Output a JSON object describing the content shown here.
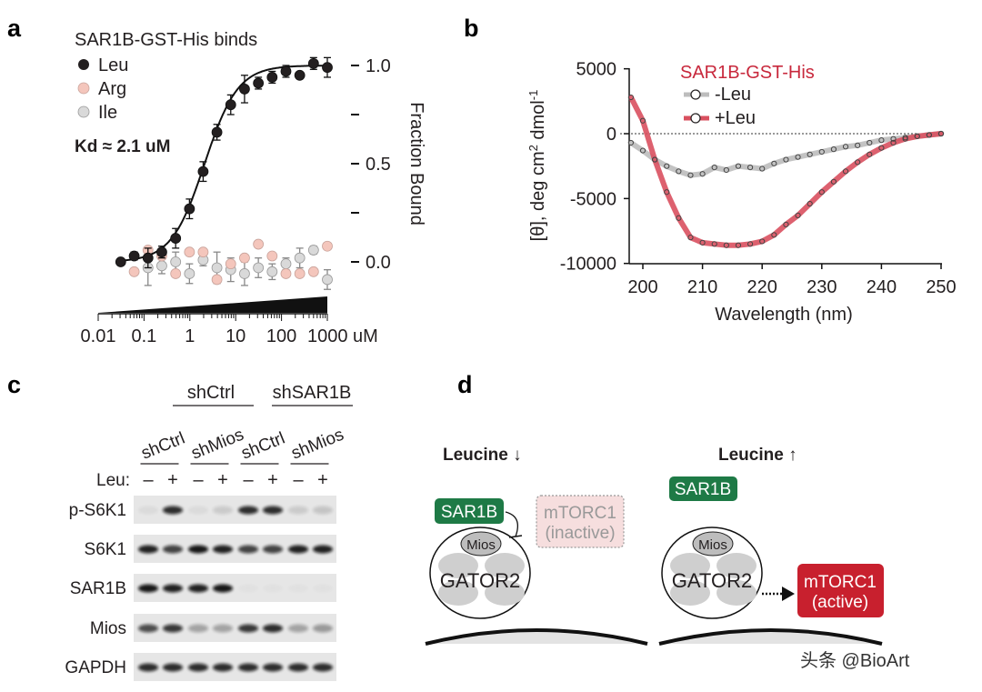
{
  "panels": {
    "a": {
      "letter": "a"
    },
    "b": {
      "letter": "b"
    },
    "c": {
      "letter": "c"
    },
    "d": {
      "letter": "d"
    }
  },
  "chart_data": [
    {
      "panel": "a",
      "type": "scatter",
      "title": "SAR1B-GST-His binds",
      "annotation": "Kd ≈ 2.1 uM",
      "kd": 2.1,
      "xlabel": "uM",
      "ylabel": "Fraction Bound",
      "xscale": "log",
      "xlim": [
        0.01,
        1000
      ],
      "ylim": [
        -0.15,
        1.05
      ],
      "x_tick_labels": [
        "0.01",
        "0.1",
        "1",
        "10",
        "100",
        "1000 uM"
      ],
      "x_ticks": [
        0.01,
        0.1,
        1,
        10,
        100,
        1000
      ],
      "y_tick_labels": [
        "1.0",
        "0.5",
        "0.0"
      ],
      "y_ticks": [
        1.0,
        0.5,
        0.0
      ],
      "y_minor_ticks": [
        0.75,
        0.25
      ],
      "y_axis_side": "right",
      "legend_position": "top-left",
      "x": [
        0.031,
        0.061,
        0.122,
        0.244,
        0.49,
        0.98,
        1.95,
        3.9,
        7.8,
        15.6,
        31.25,
        62.5,
        125,
        250,
        500,
        1000
      ],
      "series": [
        {
          "name": "Leu",
          "color": "#231f20",
          "fit": "sigmoid",
          "values": [
            0.0,
            0.03,
            0.02,
            0.05,
            0.12,
            0.27,
            0.46,
            0.66,
            0.8,
            0.88,
            0.91,
            0.94,
            0.97,
            0.95,
            1.01,
            0.99
          ],
          "err": [
            0.0,
            0.02,
            0.05,
            0.03,
            0.05,
            0.05,
            0.05,
            0.04,
            0.05,
            0.07,
            0.03,
            0.03,
            0.03,
            0.0,
            0.03,
            0.05
          ]
        },
        {
          "name": "Arg",
          "color": "#f4c6bc",
          "values": [
            null,
            -0.05,
            0.06,
            0.03,
            -0.06,
            0.05,
            0.05,
            -0.09,
            -0.01,
            0.02,
            0.09,
            0.03,
            -0.06,
            -0.06,
            -0.05,
            0.08
          ],
          "err": [
            null,
            0.0,
            0.0,
            0.0,
            0.0,
            0.0,
            0.0,
            0.0,
            0.0,
            0.0,
            0.0,
            0.0,
            0.0,
            0.0,
            0.0,
            0.0
          ]
        },
        {
          "name": "Ile",
          "color": "#d9d9d9",
          "values": [
            null,
            null,
            -0.03,
            -0.02,
            0.0,
            -0.06,
            0.01,
            -0.03,
            -0.04,
            -0.06,
            -0.03,
            -0.05,
            -0.01,
            0.02,
            0.06,
            -0.09
          ],
          "err": [
            null,
            null,
            0.09,
            0.04,
            0.05,
            0.05,
            0.03,
            0.08,
            0.06,
            0.06,
            0.05,
            0.04,
            0.03,
            0.05,
            0.02,
            0.05
          ]
        }
      ]
    },
    {
      "panel": "b",
      "type": "line",
      "title": "SAR1B-GST-His",
      "title_color": "#c8283c",
      "xlabel": "Wavelength (nm)",
      "ylabel": "[θ], deg cm2 dmol-1",
      "ylabel_parts": {
        "pre": "[θ], deg cm",
        "sup1": "2",
        "mid": " dmol",
        "sup2": "-1"
      },
      "xlim": [
        198,
        250
      ],
      "ylim": [
        -10000,
        5000
      ],
      "x_ticks": [
        200,
        210,
        220,
        230,
        240,
        250
      ],
      "x_tick_labels": [
        "200",
        "210",
        "220",
        "230",
        "240",
        "250"
      ],
      "y_ticks": [
        5000,
        0,
        -5000,
        -10000
      ],
      "y_tick_labels": [
        "5000",
        "0",
        "-5000",
        "-10000"
      ],
      "zero_line": "dotted",
      "legend_position": "top-right",
      "x": [
        198,
        200,
        202,
        204,
        206,
        208,
        210,
        212,
        214,
        216,
        218,
        220,
        222,
        224,
        226,
        228,
        230,
        232,
        234,
        236,
        238,
        240,
        242,
        244,
        246,
        248,
        250
      ],
      "series": [
        {
          "name": "-Leu",
          "color": "#bdbdbd",
          "values": [
            -700,
            -1300,
            -2000,
            -2500,
            -2900,
            -3200,
            -3100,
            -2600,
            -2800,
            -2500,
            -2600,
            -2700,
            -2300,
            -2000,
            -1800,
            -1600,
            -1400,
            -1200,
            -1000,
            -900,
            -700,
            -500,
            -400,
            -300,
            -200,
            -100,
            0
          ]
        },
        {
          "name": "+Leu",
          "color": "#d9505f",
          "values": [
            2800,
            1000,
            -2000,
            -4500,
            -6500,
            -8000,
            -8400,
            -8500,
            -8600,
            -8600,
            -8500,
            -8300,
            -7800,
            -7000,
            -6300,
            -5400,
            -4500,
            -3700,
            -2900,
            -2200,
            -1600,
            -1100,
            -700,
            -400,
            -200,
            -100,
            0
          ]
        }
      ]
    }
  ],
  "blot": {
    "group_labels": [
      "shCtrl",
      "shSAR1B"
    ],
    "subgroup_labels": [
      "shCtrl",
      "shMios",
      "shCtrl",
      "shMios"
    ],
    "leu_label": "Leu:",
    "leu_states": [
      "–",
      "+",
      "–",
      "+",
      "–",
      "+",
      "–",
      "+"
    ],
    "rows": [
      {
        "label": "p-S6K1",
        "intensity": [
          0.05,
          0.85,
          0.05,
          0.12,
          0.85,
          0.85,
          0.12,
          0.15
        ]
      },
      {
        "label": "S6K1",
        "intensity": [
          0.9,
          0.75,
          0.95,
          0.9,
          0.75,
          0.75,
          0.9,
          0.9
        ]
      },
      {
        "label": "SAR1B",
        "intensity": [
          0.95,
          0.9,
          0.9,
          0.95,
          0.02,
          0.02,
          0.02,
          0.02
        ]
      },
      {
        "label": "Mios",
        "intensity": [
          0.7,
          0.8,
          0.3,
          0.3,
          0.8,
          0.85,
          0.3,
          0.35
        ]
      },
      {
        "label": "GAPDH",
        "intensity": [
          0.85,
          0.85,
          0.85,
          0.85,
          0.85,
          0.85,
          0.85,
          0.85
        ]
      }
    ]
  },
  "diagram": {
    "left": {
      "heading": "Leucine ↓",
      "sar1b": "SAR1B",
      "mios": "Mios",
      "gator2": "GATOR2",
      "mtorc1_line1": "mTORC1",
      "mtorc1_line2": "(inactive)"
    },
    "right": {
      "heading": "Leucine ↑",
      "sar1b": "SAR1B",
      "mios": "Mios",
      "gator2": "GATOR2",
      "mtorc1_line1": "mTORC1",
      "mtorc1_line2": "(active)"
    },
    "colors": {
      "sar1b": "#1e7a46",
      "mtorc1_active": "#c8202e",
      "mtorc1_inactive": "#f6dede"
    }
  },
  "watermark": "头条 @BioArt"
}
